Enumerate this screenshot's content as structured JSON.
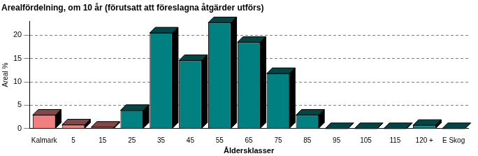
{
  "chart_data": {
    "type": "bar",
    "title": "Arealfördelning, om 10 år (förutsatt att föreslagna åtgärder utförs)",
    "x_label": "Åldersklasser",
    "y_label": "Areal %",
    "categories": [
      "Kalmark",
      "5",
      "15",
      "25",
      "35",
      "45",
      "55",
      "65",
      "75",
      "85",
      "95",
      "105",
      "115",
      "120 +",
      "E Skog"
    ],
    "values": [
      2.9,
      0.8,
      0.3,
      3.9,
      20.5,
      14.6,
      22.7,
      18.5,
      11.8,
      2.9,
      0,
      0,
      0,
      0.7,
      0
    ],
    "colors": [
      "#f08080",
      "#f08080",
      "#f08080",
      "#008080",
      "#008080",
      "#008080",
      "#008080",
      "#008080",
      "#008080",
      "#008080",
      "#008080",
      "#008080",
      "#008080",
      "#008080",
      "#008080"
    ],
    "ylim": [
      0,
      23
    ],
    "yticks": [
      0,
      5,
      10,
      15,
      20
    ],
    "grid": true
  }
}
